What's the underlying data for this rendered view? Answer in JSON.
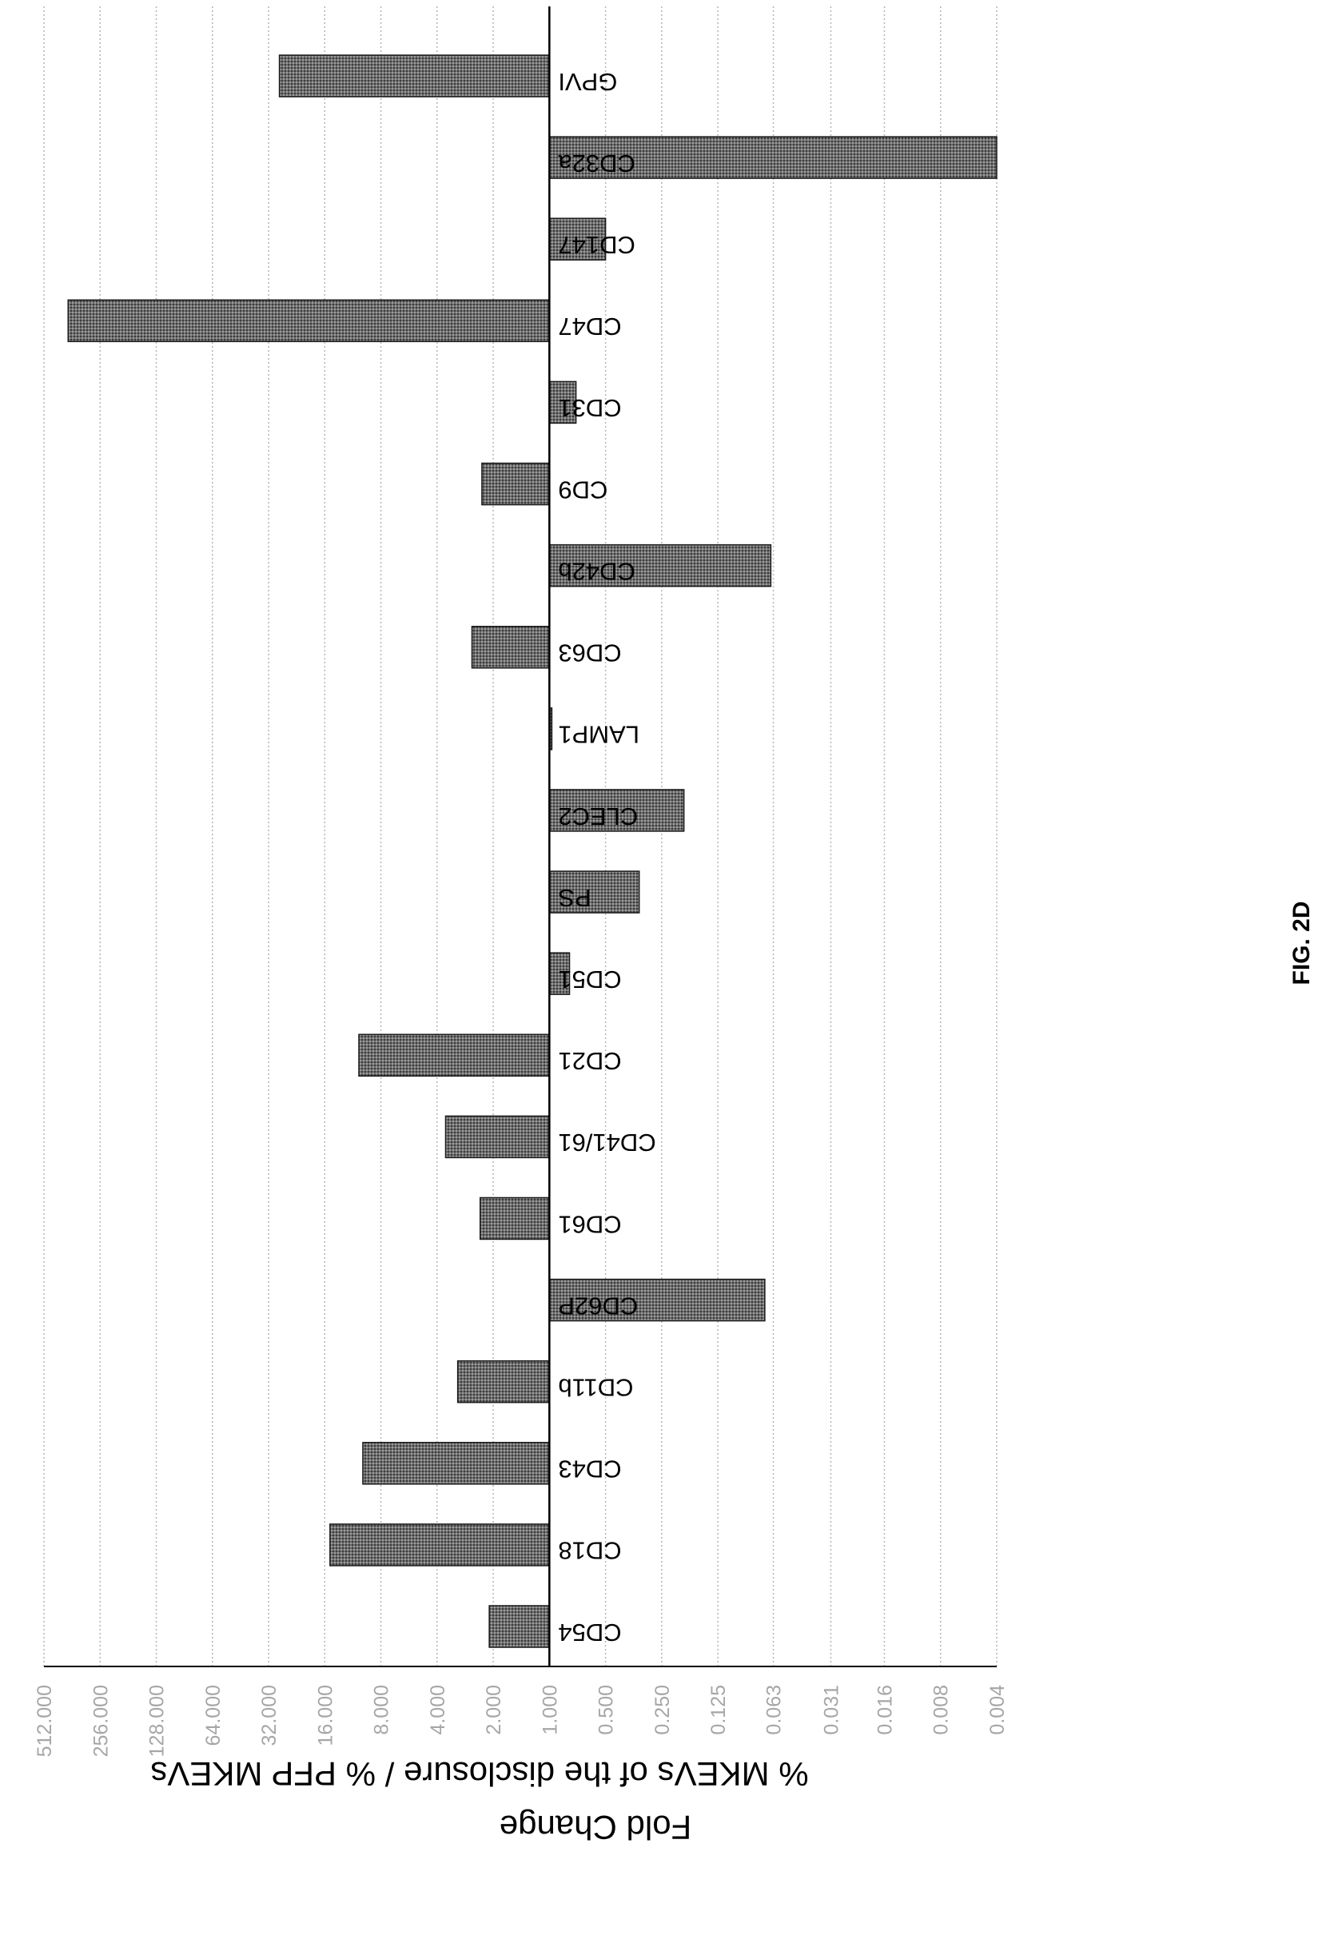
{
  "figure_label": "FIG. 2D",
  "colors": {
    "bar_fill": "#707070",
    "bar_stroke": "#1a1a1a",
    "grid": "#b5b5b5",
    "axis": "#000000",
    "tick_text": "#a6a6a6"
  },
  "chart_data": {
    "type": "bar",
    "orientation": "vertical",
    "scale": "log2",
    "title": "",
    "ylabel": "Fold Change",
    "ylabel_line2": "% MKEVs of the disclosure / % PFP MKEVs",
    "ylim": [
      0.004,
      512
    ],
    "yticks": [
      512,
      256,
      128,
      64,
      32,
      16,
      8,
      4,
      2,
      1,
      0.5,
      0.25,
      0.125,
      0.063,
      0.031,
      0.016,
      0.008,
      0.004
    ],
    "ytick_labels": [
      "512.000",
      "256.000",
      "128.000",
      "64.000",
      "32.000",
      "16.000",
      "8.000",
      "4.000",
      "2.000",
      "1.000",
      "0.500",
      "0.250",
      "0.125",
      "0.063",
      "0.031",
      "0.016",
      "0.008",
      "0.004"
    ],
    "grid": true,
    "categories": [
      "CD54",
      "CD18",
      "CD43",
      "CD11b",
      "CD62P",
      "CD61",
      "CD41/61",
      "CD21",
      "CD51",
      "PS",
      "CLEC2",
      "LAMP1",
      "CD63",
      "CD42b",
      "CD9",
      "CD31",
      "CD47",
      "CD147",
      "CD32a",
      "GPVI"
    ],
    "values": [
      2.1,
      15.0,
      10.0,
      3.1,
      0.07,
      2.35,
      3.6,
      10.5,
      0.78,
      0.33,
      0.19,
      0.97,
      2.6,
      0.065,
      2.3,
      0.72,
      380,
      0.5,
      0.004,
      28
    ]
  }
}
